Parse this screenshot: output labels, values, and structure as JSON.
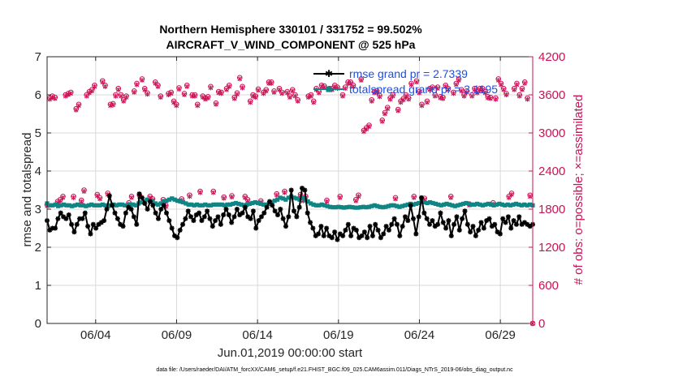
{
  "chart_data": {
    "type": "line",
    "title_line1": "Northern Hemisphere 330101 / 331752 = 99.502%",
    "title_line2": "AIRCRAFT_V_WIND_COMPONENT @ 525 hPa",
    "xlabel": "Jun.01,2019 00:00:00 start",
    "ylabel_left": "rmse and totalspread",
    "ylabel_right": "# of obs: o=possible; ×=assimilated",
    "footnote": "data file: /Users/raeder/DAI/ATM_forcXX/CAM6_setup/f.e21.FHIST_BGC.f09_025.CAM6assim.011/Diags_NTrS_2019-06/obs_diag_output.nc",
    "xlim": [
      1,
      31
    ],
    "x_ticks": [
      4,
      9,
      14,
      19,
      24,
      29
    ],
    "x_tick_labels": [
      "06/04",
      "06/09",
      "06/14",
      "06/19",
      "06/24",
      "06/29"
    ],
    "ylim_left": [
      0,
      7
    ],
    "y_ticks_left": [
      0,
      1,
      2,
      3,
      4,
      5,
      6,
      7
    ],
    "y_tick_labels_left": [
      "0",
      "1",
      "2",
      "3",
      "4",
      "5",
      "6",
      "7"
    ],
    "ylim_right": [
      0,
      4200
    ],
    "y_ticks_right": [
      0,
      600,
      1200,
      1800,
      2400,
      3000,
      3600,
      4200
    ],
    "y_tick_labels_right": [
      "0",
      "600",
      "1200",
      "1800",
      "2400",
      "3000",
      "3600",
      "4200"
    ],
    "grid": true,
    "legend_position": "top-right",
    "colors": {
      "rmse": "#000000",
      "spread": "#0f8585",
      "obs": "#cc1155",
      "right_axis": "#cc1155",
      "legend_text": "#1f4fe0",
      "grid": "#d9d9d9"
    },
    "series": [
      {
        "name": "rmse grand pr = 2.7339",
        "values": [
          2.7,
          2.45,
          2.5,
          2.5,
          2.75,
          2.9,
          2.8,
          2.75,
          2.85,
          2.6,
          2.4,
          2.6,
          2.75,
          2.75,
          2.9,
          2.55,
          2.35,
          2.6,
          2.5,
          2.6,
          2.65,
          2.7,
          3.0,
          3.35,
          3.1,
          2.9,
          2.75,
          2.6,
          2.55,
          2.9,
          3.05,
          3.0,
          2.8,
          2.6,
          3.4,
          3.3,
          3.15,
          3.0,
          3.2,
          3.1,
          2.9,
          2.75,
          3.0,
          3.1,
          2.9,
          2.7,
          2.5,
          2.3,
          2.25,
          2.45,
          2.6,
          2.75,
          2.95,
          2.8,
          2.7,
          2.85,
          2.9,
          2.7,
          2.8,
          2.95,
          2.75,
          2.55,
          2.7,
          2.8,
          2.6,
          2.85,
          3.0,
          2.85,
          2.65,
          2.8,
          3.0,
          2.85,
          2.9,
          3.05,
          2.8,
          2.75,
          2.95,
          2.5,
          2.7,
          2.8,
          2.9,
          3.05,
          3.2,
          3.1,
          2.95,
          2.85,
          3.0,
          2.75,
          2.55,
          2.8,
          3.5,
          2.95,
          2.8,
          3.05,
          3.55,
          3.5,
          2.9,
          2.65,
          2.5,
          2.3,
          2.35,
          2.55,
          2.3,
          2.5,
          2.3,
          2.25,
          2.4,
          2.2,
          2.35,
          2.3,
          2.45,
          2.6,
          2.3,
          2.5,
          2.45,
          2.25,
          2.3,
          2.4,
          2.25,
          2.55,
          2.3,
          2.6,
          2.45,
          2.25,
          2.35,
          2.55,
          2.45,
          2.6,
          2.75,
          2.6,
          2.3,
          2.55,
          2.8,
          2.7,
          3.1,
          2.75,
          2.35,
          2.8,
          3.3,
          2.9,
          2.75,
          2.6,
          2.7,
          2.55,
          2.6,
          2.9,
          2.65,
          2.5,
          2.7,
          2.3,
          2.6,
          2.8,
          2.45,
          2.75,
          2.95,
          2.6,
          2.4,
          2.55,
          2.3,
          2.45,
          2.65,
          2.5,
          2.7,
          2.75,
          2.55,
          2.6,
          2.4,
          2.35,
          2.75,
          2.65,
          2.8,
          2.5,
          2.7,
          2.6,
          2.8,
          2.6,
          2.65,
          2.6,
          2.55,
          2.6
        ]
      },
      {
        "name": "totalspread grand pr = 3.1195",
        "values": [
          3.15,
          3.1,
          3.1,
          3.12,
          3.08,
          3.1,
          3.12,
          3.1,
          3.1,
          3.08,
          3.1,
          3.12,
          3.1,
          3.1,
          3.08,
          3.1,
          3.12,
          3.1,
          3.1,
          3.1,
          3.12,
          3.1,
          3.08,
          3.1,
          3.12,
          3.1,
          3.12,
          3.12,
          3.1,
          3.1,
          3.12,
          3.12,
          3.1,
          3.15,
          3.18,
          3.2,
          3.25,
          3.22,
          3.2,
          3.15,
          3.12,
          3.15,
          3.2,
          3.22,
          3.25,
          3.28,
          3.25,
          3.22,
          3.2,
          3.18,
          3.15,
          3.12,
          3.12,
          3.1,
          3.12,
          3.1,
          3.1,
          3.12,
          3.1,
          3.1,
          3.12,
          3.12,
          3.12,
          3.12,
          3.1,
          3.12,
          3.12,
          3.14,
          3.16,
          3.14,
          3.12,
          3.1,
          3.12,
          3.14,
          3.16,
          3.18,
          3.16,
          3.14,
          3.12,
          3.12,
          3.14,
          3.18,
          3.22,
          3.25,
          3.3,
          3.28,
          3.25,
          3.3,
          3.33,
          3.3,
          3.28,
          3.25,
          3.3,
          3.25,
          3.2,
          3.15,
          3.12,
          3.1,
          3.1,
          3.12,
          3.1,
          3.08,
          3.06,
          3.05,
          3.05,
          3.06,
          3.05,
          3.04,
          3.05,
          3.06,
          3.05,
          3.04,
          3.04,
          3.05,
          3.06,
          3.05,
          3.06,
          3.08,
          3.1,
          3.08,
          3.06,
          3.05,
          3.06,
          3.08,
          3.1,
          3.1,
          3.08,
          3.06,
          3.08,
          3.1,
          3.12,
          3.14,
          3.12,
          3.14,
          3.16,
          3.2,
          3.18,
          3.16,
          3.18,
          3.16,
          3.14,
          3.12,
          3.1,
          3.12,
          3.14,
          3.12,
          3.1,
          3.08,
          3.1,
          3.12,
          3.14,
          3.16,
          3.14,
          3.12,
          3.12,
          3.14,
          3.12,
          3.1,
          3.12,
          3.14,
          3.12,
          3.1,
          3.12,
          3.14,
          3.12,
          3.1,
          3.12,
          3.1,
          3.12,
          3.14,
          3.12,
          3.1,
          3.12,
          3.1,
          3.12,
          3.1
        ]
      }
    ],
    "obs_possible": [
      1870,
      3550,
      3580,
      3560,
      1920,
      1950,
      2000,
      3600,
      3620,
      3640,
      2000,
      3380,
      3450,
      1940,
      2100,
      3600,
      3650,
      3680,
      3750,
      2030,
      1980,
      3820,
      3750,
      2050,
      3450,
      3460,
      3600,
      3700,
      3600,
      3520,
      3580,
      1900,
      2000,
      3660,
      3780,
      2020,
      3850,
      3700,
      3630,
      2000,
      1960,
      3800,
      3750,
      3580,
      1950,
      1860,
      3620,
      3640,
      3500,
      3450,
      3710,
      1960,
      3620,
      3750,
      2020,
      3600,
      3600,
      3450,
      2080,
      3580,
      3550,
      3570,
      3730,
      2080,
      3470,
      3650,
      3640,
      1990,
      3700,
      3750,
      2010,
      3560,
      3630,
      3870,
      3730,
      2000,
      1950,
      3500,
      3600,
      3580,
      3690,
      1930,
      3640,
      3680,
      3800,
      3800,
      3660,
      2040,
      3700,
      3640,
      2080,
      3650,
      3580,
      3680,
      3600,
      3520,
      2030,
      1950,
      2000,
      3580,
      3600,
      3500,
      3700,
      3650,
      3750,
      3740,
      1940,
      3700,
      3700,
      3750,
      3720,
      2000,
      3600,
      3720,
      3800,
      3800,
      3750,
      1950,
      2020,
      3850,
      3040,
      3080,
      3120,
      3520,
      3650,
      3660,
      3590,
      3200,
      3320,
      3400,
      3550,
      3600,
      1980,
      3370,
      3500,
      3540,
      3600,
      3550,
      3780,
      2000,
      3820,
      3650,
      3450,
      1970,
      3500,
      3700,
      3720,
      3600,
      3720,
      3570,
      3560,
      3750,
      3700,
      2000,
      3640,
      3780,
      3850,
      3680,
      3600,
      3660,
      1880,
      3600,
      3700,
      3650,
      3700,
      3700,
      3650,
      3570,
      3560,
      1900,
      3550,
      3850,
      3780,
      3700,
      3620,
      2000,
      2050,
      3700,
      3780,
      3600,
      3700,
      3800,
      3550,
      2020,
      0
    ],
    "obs_assimilated": [
      1850,
      3530,
      3560,
      3540,
      1900,
      1930,
      1980,
      3580,
      3600,
      3620,
      1980,
      3360,
      3430,
      1920,
      2080,
      3580,
      3630,
      3660,
      3730,
      2010,
      1960,
      3800,
      3730,
      2030,
      3430,
      3440,
      3580,
      3680,
      3580,
      3500,
      3560,
      1880,
      1980,
      3640,
      3760,
      2000,
      3830,
      3680,
      3610,
      1980,
      1940,
      3780,
      3730,
      3560,
      1930,
      1840,
      3600,
      3620,
      3480,
      3430,
      3690,
      1940,
      3600,
      3730,
      2000,
      3580,
      3580,
      3430,
      2060,
      3560,
      3530,
      3550,
      3710,
      2060,
      3450,
      3630,
      3620,
      1970,
      3680,
      3730,
      1990,
      3540,
      3610,
      3850,
      3710,
      1980,
      1930,
      3480,
      3580,
      3560,
      3670,
      1910,
      3620,
      3660,
      3780,
      3780,
      3640,
      2020,
      3680,
      3620,
      2060,
      3630,
      3560,
      3660,
      3580,
      3500,
      2010,
      1930,
      1980,
      3560,
      3580,
      3480,
      3680,
      3630,
      3730,
      3720,
      1920,
      3680,
      3680,
      3730,
      3700,
      1980,
      3580,
      3700,
      3780,
      3780,
      3730,
      1930,
      2000,
      3830,
      3020,
      3060,
      3100,
      3500,
      3630,
      3640,
      3570,
      3180,
      3300,
      3380,
      3530,
      3580,
      1960,
      3350,
      3480,
      3520,
      3580,
      3530,
      3760,
      1980,
      3800,
      3630,
      3430,
      1950,
      3480,
      3680,
      3700,
      3580,
      3700,
      3550,
      3540,
      3730,
      3680,
      1980,
      3620,
      3760,
      3830,
      3660,
      3580,
      3640,
      1860,
      3580,
      3680,
      3630,
      3680,
      3680,
      3630,
      3550,
      3540,
      1880,
      3530,
      3830,
      3760,
      3680,
      3600,
      1980,
      2030,
      3680,
      3760,
      3580,
      3680,
      3780,
      3530,
      2000,
      0
    ]
  }
}
